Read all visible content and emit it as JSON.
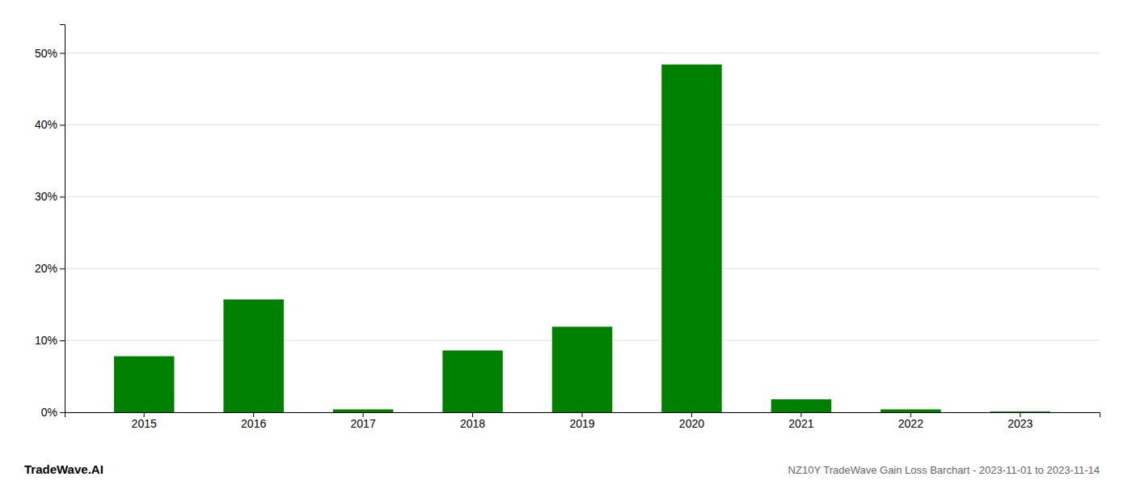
{
  "chart_data": {
    "type": "bar",
    "title": "NZ10Y TradeWave Gain Loss Barchart - 2023-11-01 to 2023-11-14",
    "annotations": [
      "TradeWave.AI"
    ],
    "categories": [
      "2015",
      "2016",
      "2017",
      "2018",
      "2019",
      "2020",
      "2021",
      "2022",
      "2023"
    ],
    "values": [
      0.078,
      0.157,
      0.004,
      0.086,
      0.119,
      0.484,
      0.018,
      0.004,
      0.001
    ],
    "color": "#008000",
    "ylim": [
      0,
      0.54
    ],
    "yticks": [
      {
        "value": 0.0,
        "label": "0%"
      },
      {
        "value": 0.1,
        "label": "10%"
      },
      {
        "value": 0.2,
        "label": "20%"
      },
      {
        "value": 0.3,
        "label": "30%"
      },
      {
        "value": 0.4,
        "label": "40%"
      },
      {
        "value": 0.5,
        "label": "50%"
      }
    ],
    "grid": true
  }
}
